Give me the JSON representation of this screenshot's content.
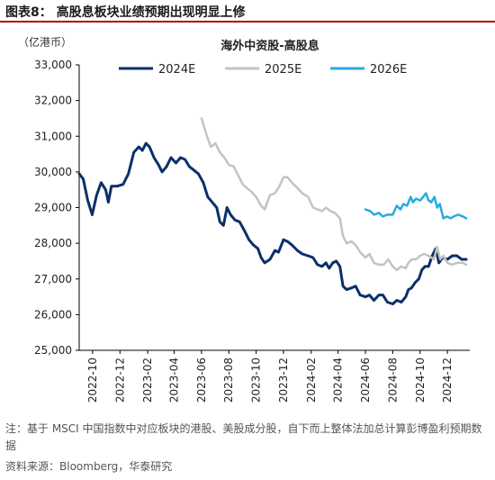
{
  "figure": {
    "label": "图表8：  高股息板块业绩预期出现明显上修",
    "note": "注：基于 MSCI 中国指数中对应板块的港股、美股成分股，自下而上整体法加总计算彭博盈利预期数据",
    "source": "资料来源：Bloomberg，华泰研究"
  },
  "colors": {
    "title_rule": "#b30000",
    "series_2024E": "#0b2f6b",
    "series_2025E": "#c3c3c3",
    "series_2026E": "#27aae1"
  },
  "chart_data": {
    "type": "line",
    "title": "海外中资股-高股息",
    "ylabel": "（亿港币）",
    "xlabel": "",
    "ylim": [
      25000,
      33000
    ],
    "xlim": [
      "2022-09-01",
      "2025-01-20"
    ],
    "yticks": [
      25000,
      26000,
      27000,
      28000,
      29000,
      30000,
      31000,
      32000,
      33000
    ],
    "ytick_labels": [
      "25,000",
      "26,000",
      "27,000",
      "28,000",
      "29,000",
      "30,000",
      "31,000",
      "32,000",
      "33,000"
    ],
    "xticks": [
      "2022-10-01",
      "2022-12-01",
      "2023-02-01",
      "2023-04-01",
      "2023-06-01",
      "2023-08-01",
      "2023-10-01",
      "2023-12-01",
      "2024-02-01",
      "2024-04-01",
      "2024-06-01",
      "2024-08-01",
      "2024-10-01",
      "2024-12-01"
    ],
    "xtick_labels": [
      "2022-10",
      "2022-12",
      "2023-02",
      "2023-04",
      "2023-06",
      "2023-08",
      "2023-10",
      "2023-12",
      "2024-02",
      "2024-04",
      "2024-06",
      "2024-08",
      "2024-10",
      "2024-12"
    ],
    "grid": false,
    "legend": "top",
    "series": [
      {
        "name": "2024E",
        "points": [
          [
            "2022-09-01",
            29950
          ],
          [
            "2022-09-10",
            29800
          ],
          [
            "2022-09-20",
            29200
          ],
          [
            "2022-09-30",
            28800
          ],
          [
            "2022-10-10",
            29350
          ],
          [
            "2022-10-20",
            29700
          ],
          [
            "2022-10-30",
            29500
          ],
          [
            "2022-11-05",
            29150
          ],
          [
            "2022-11-12",
            29600
          ],
          [
            "2022-11-25",
            29600
          ],
          [
            "2022-12-08",
            29650
          ],
          [
            "2022-12-20",
            29950
          ],
          [
            "2023-01-01",
            30550
          ],
          [
            "2023-01-12",
            30700
          ],
          [
            "2023-01-20",
            30600
          ],
          [
            "2023-01-28",
            30800
          ],
          [
            "2023-02-05",
            30700
          ],
          [
            "2023-02-15",
            30400
          ],
          [
            "2023-02-25",
            30200
          ],
          [
            "2023-03-05",
            30000
          ],
          [
            "2023-03-15",
            30150
          ],
          [
            "2023-03-25",
            30400
          ],
          [
            "2023-04-05",
            30250
          ],
          [
            "2023-04-15",
            30400
          ],
          [
            "2023-04-25",
            30350
          ],
          [
            "2023-05-05",
            30150
          ],
          [
            "2023-05-15",
            30050
          ],
          [
            "2023-05-25",
            29950
          ],
          [
            "2023-06-05",
            29700
          ],
          [
            "2023-06-15",
            29300
          ],
          [
            "2023-06-25",
            29150
          ],
          [
            "2023-07-05",
            29000
          ],
          [
            "2023-07-12",
            28600
          ],
          [
            "2023-07-20",
            28500
          ],
          [
            "2023-07-28",
            29000
          ],
          [
            "2023-08-05",
            28800
          ],
          [
            "2023-08-15",
            28650
          ],
          [
            "2023-08-25",
            28600
          ],
          [
            "2023-09-05",
            28350
          ],
          [
            "2023-09-15",
            28100
          ],
          [
            "2023-09-25",
            27950
          ],
          [
            "2023-10-05",
            27850
          ],
          [
            "2023-10-12",
            27600
          ],
          [
            "2023-10-20",
            27450
          ],
          [
            "2023-11-01",
            27550
          ],
          [
            "2023-11-12",
            27800
          ],
          [
            "2023-11-20",
            27750
          ],
          [
            "2023-12-01",
            28100
          ],
          [
            "2023-12-10",
            28050
          ],
          [
            "2023-12-20",
            27950
          ],
          [
            "2024-01-01",
            27800
          ],
          [
            "2024-01-12",
            27700
          ],
          [
            "2024-01-25",
            27650
          ],
          [
            "2024-02-05",
            27600
          ],
          [
            "2024-02-15",
            27400
          ],
          [
            "2024-02-25",
            27350
          ],
          [
            "2024-03-05",
            27450
          ],
          [
            "2024-03-12",
            27300
          ],
          [
            "2024-03-20",
            27450
          ],
          [
            "2024-03-28",
            27500
          ],
          [
            "2024-04-05",
            27350
          ],
          [
            "2024-04-12",
            26800
          ],
          [
            "2024-04-20",
            26700
          ],
          [
            "2024-05-01",
            26750
          ],
          [
            "2024-05-10",
            26800
          ],
          [
            "2024-05-20",
            26550
          ],
          [
            "2024-06-01",
            26500
          ],
          [
            "2024-06-10",
            26550
          ],
          [
            "2024-06-20",
            26400
          ],
          [
            "2024-07-01",
            26550
          ],
          [
            "2024-07-10",
            26550
          ],
          [
            "2024-07-20",
            26350
          ],
          [
            "2024-08-01",
            26300
          ],
          [
            "2024-08-10",
            26400
          ],
          [
            "2024-08-20",
            26350
          ],
          [
            "2024-08-30",
            26500
          ],
          [
            "2024-09-05",
            26700
          ],
          [
            "2024-09-12",
            26750
          ],
          [
            "2024-09-20",
            26900
          ],
          [
            "2024-09-28",
            27000
          ],
          [
            "2024-10-05",
            27250
          ],
          [
            "2024-10-12",
            27350
          ],
          [
            "2024-10-20",
            27350
          ],
          [
            "2024-10-28",
            27650
          ],
          [
            "2024-11-05",
            27850
          ],
          [
            "2024-11-12",
            27450
          ],
          [
            "2024-11-20",
            27600
          ],
          [
            "2024-12-01",
            27550
          ],
          [
            "2024-12-12",
            27650
          ],
          [
            "2024-12-22",
            27650
          ],
          [
            "2025-01-02",
            27550
          ],
          [
            "2025-01-12",
            27550
          ]
        ]
      },
      {
        "name": "2025E",
        "points": [
          [
            "2023-06-01",
            31500
          ],
          [
            "2023-06-12",
            31050
          ],
          [
            "2023-06-22",
            30700
          ],
          [
            "2023-07-02",
            30800
          ],
          [
            "2023-07-12",
            30550
          ],
          [
            "2023-07-22",
            30400
          ],
          [
            "2023-08-01",
            30200
          ],
          [
            "2023-08-12",
            30150
          ],
          [
            "2023-08-22",
            29900
          ],
          [
            "2023-09-01",
            29650
          ],
          [
            "2023-09-10",
            29550
          ],
          [
            "2023-09-20",
            29450
          ],
          [
            "2023-10-01",
            29300
          ],
          [
            "2023-10-12",
            29050
          ],
          [
            "2023-10-20",
            28950
          ],
          [
            "2023-11-01",
            29350
          ],
          [
            "2023-11-12",
            29400
          ],
          [
            "2023-11-22",
            29600
          ],
          [
            "2023-12-01",
            29850
          ],
          [
            "2023-12-10",
            29850
          ],
          [
            "2023-12-20",
            29700
          ],
          [
            "2024-01-01",
            29550
          ],
          [
            "2024-01-12",
            29400
          ],
          [
            "2024-01-25",
            29300
          ],
          [
            "2024-02-05",
            29000
          ],
          [
            "2024-02-15",
            28950
          ],
          [
            "2024-02-25",
            28900
          ],
          [
            "2024-03-05",
            29000
          ],
          [
            "2024-03-15",
            28900
          ],
          [
            "2024-03-25",
            28850
          ],
          [
            "2024-04-05",
            28700
          ],
          [
            "2024-04-12",
            28200
          ],
          [
            "2024-04-20",
            28000
          ],
          [
            "2024-05-01",
            28050
          ],
          [
            "2024-05-10",
            27950
          ],
          [
            "2024-05-20",
            27750
          ],
          [
            "2024-06-01",
            27600
          ],
          [
            "2024-06-10",
            27700
          ],
          [
            "2024-06-20",
            27450
          ],
          [
            "2024-07-01",
            27400
          ],
          [
            "2024-07-12",
            27400
          ],
          [
            "2024-07-22",
            27550
          ],
          [
            "2024-08-01",
            27350
          ],
          [
            "2024-08-10",
            27250
          ],
          [
            "2024-08-20",
            27350
          ],
          [
            "2024-08-30",
            27300
          ],
          [
            "2024-09-05",
            27450
          ],
          [
            "2024-09-12",
            27550
          ],
          [
            "2024-09-22",
            27550
          ],
          [
            "2024-10-01",
            27650
          ],
          [
            "2024-10-10",
            27700
          ],
          [
            "2024-10-20",
            27650
          ],
          [
            "2024-11-01",
            27550
          ],
          [
            "2024-11-08",
            27900
          ],
          [
            "2024-11-15",
            27550
          ],
          [
            "2024-11-22",
            27650
          ],
          [
            "2024-12-01",
            27450
          ],
          [
            "2024-12-12",
            27400
          ],
          [
            "2024-12-22",
            27450
          ],
          [
            "2025-01-05",
            27450
          ],
          [
            "2025-01-12",
            27400
          ]
        ]
      },
      {
        "name": "2026E",
        "points": [
          [
            "2024-06-01",
            28950
          ],
          [
            "2024-06-12",
            28900
          ],
          [
            "2024-06-20",
            28800
          ],
          [
            "2024-07-01",
            28850
          ],
          [
            "2024-07-10",
            28750
          ],
          [
            "2024-07-20",
            28800
          ],
          [
            "2024-08-01",
            28800
          ],
          [
            "2024-08-06",
            28950
          ],
          [
            "2024-08-10",
            29050
          ],
          [
            "2024-08-18",
            28950
          ],
          [
            "2024-08-25",
            29100
          ],
          [
            "2024-09-02",
            29050
          ],
          [
            "2024-09-10",
            29300
          ],
          [
            "2024-09-15",
            29150
          ],
          [
            "2024-09-22",
            29250
          ],
          [
            "2024-10-01",
            29200
          ],
          [
            "2024-10-08",
            29300
          ],
          [
            "2024-10-14",
            29400
          ],
          [
            "2024-10-20",
            29200
          ],
          [
            "2024-10-26",
            29150
          ],
          [
            "2024-11-02",
            29300
          ],
          [
            "2024-11-08",
            29000
          ],
          [
            "2024-11-14",
            29100
          ],
          [
            "2024-11-22",
            28700
          ],
          [
            "2024-12-01",
            28750
          ],
          [
            "2024-12-08",
            28700
          ],
          [
            "2024-12-15",
            28750
          ],
          [
            "2024-12-25",
            28800
          ],
          [
            "2025-01-05",
            28750
          ],
          [
            "2025-01-12",
            28700
          ]
        ]
      }
    ]
  }
}
